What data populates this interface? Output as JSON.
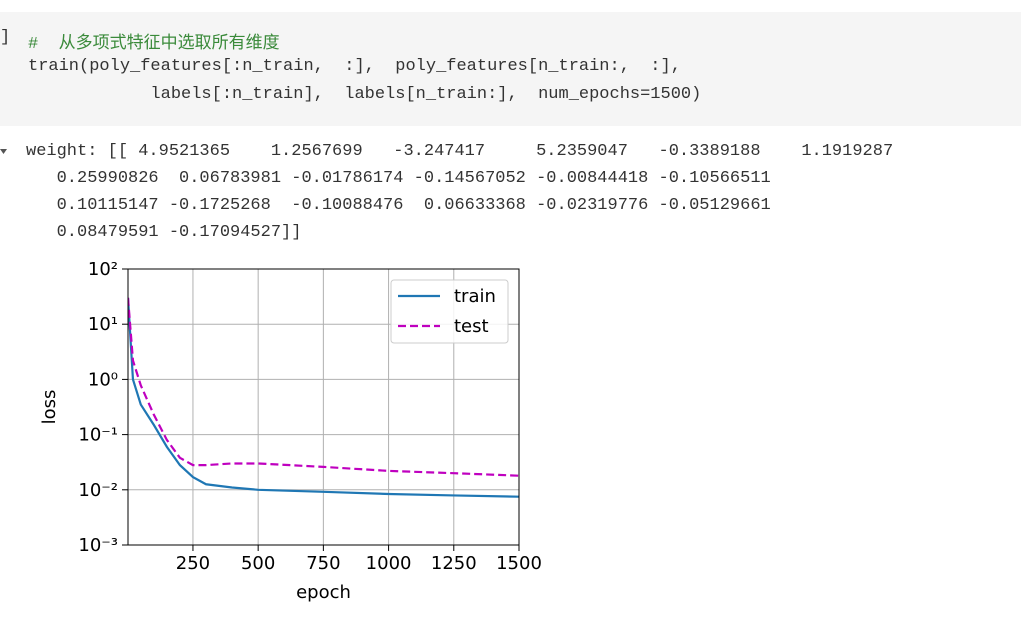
{
  "cell": {
    "prompt": "]",
    "code_lines": [
      "#  从多项式特征中选取所有维度",
      "train(poly_features[:n_train,  :],  poly_features[n_train:,  :],",
      "            labels[:n_train],  labels[n_train:],  num_epochs=1500)"
    ]
  },
  "output": {
    "lines": [
      "weight: [[ 4.9521365    1.2567699   -3.247417     5.2359047   -0.3389188    1.1919287",
      "   0.25990826  0.06783981 -0.01786174 -0.14567052 -0.00844418 -0.10566511",
      "   0.10115147 -0.1725268  -0.10088476  0.06633368 -0.02319776 -0.05129661",
      "   0.08479591 -0.17094527]]"
    ]
  },
  "chart_data": {
    "type": "line",
    "xlabel": "epoch",
    "ylabel": "loss",
    "x": [
      1,
      20,
      50,
      100,
      150,
      200,
      250,
      300,
      400,
      500,
      750,
      1000,
      1250,
      1500
    ],
    "series": [
      {
        "name": "train",
        "color": "#1f77b4",
        "dash": "solid",
        "values": [
          30,
          1.0,
          0.35,
          0.15,
          0.06,
          0.028,
          0.017,
          0.0126,
          0.011,
          0.01,
          0.0092,
          0.0084,
          0.0079,
          0.0075
        ]
      },
      {
        "name": "test",
        "color": "#bf00bf",
        "dash": "dashed",
        "values": [
          30,
          2.2,
          0.78,
          0.23,
          0.08,
          0.038,
          0.028,
          0.028,
          0.03,
          0.03,
          0.026,
          0.022,
          0.02,
          0.018
        ]
      }
    ],
    "xlim": [
      1,
      1500
    ],
    "xticks": [
      250,
      500,
      750,
      1000,
      1250,
      1500
    ],
    "ylim": [
      0.001,
      100
    ],
    "yscale": "log",
    "yticks": [
      {
        "value": 0.001,
        "label": "10⁻³"
      },
      {
        "value": 0.01,
        "label": "10⁻²"
      },
      {
        "value": 0.1,
        "label": "10⁻¹"
      },
      {
        "value": 1,
        "label": "10⁰"
      },
      {
        "value": 10,
        "label": "10¹"
      },
      {
        "value": 100,
        "label": "10²"
      }
    ],
    "grid": true,
    "legend": "upper right"
  }
}
